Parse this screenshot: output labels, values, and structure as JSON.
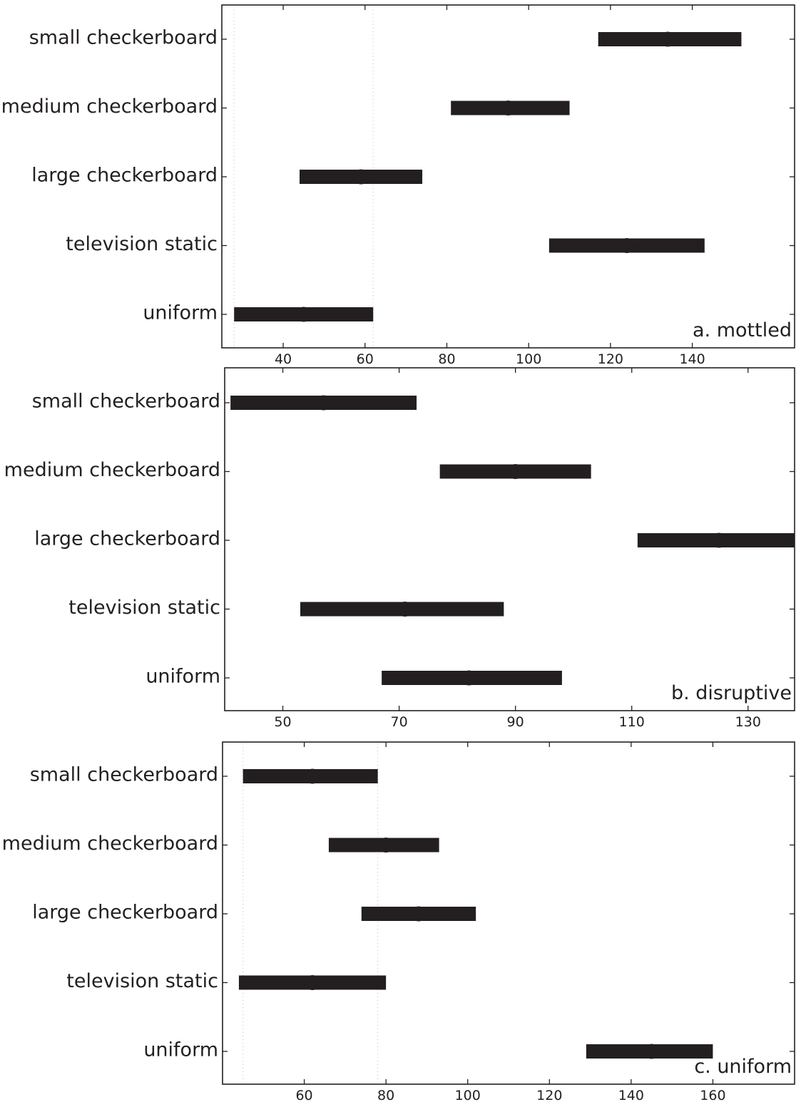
{
  "chart_data": [
    {
      "type": "dot-interval",
      "label": "a. mottled",
      "categories": [
        "small checkerboard",
        "medium checkerboard",
        "large checkerboard",
        "television static",
        "uniform"
      ],
      "means": [
        134,
        95,
        59,
        124,
        45
      ],
      "lower": [
        117,
        81,
        44,
        105,
        28
      ],
      "upper": [
        152,
        110,
        74,
        143,
        62
      ],
      "xticks": [
        40,
        60,
        80,
        100,
        120,
        140
      ],
      "xlim": [
        25,
        165
      ],
      "guides": [
        28,
        62
      ]
    },
    {
      "type": "dot-interval",
      "label": "b. disruptive",
      "categories": [
        "small checkerboard",
        "medium checkerboard",
        "large checkerboard",
        "television static",
        "uniform"
      ],
      "means": [
        57,
        90,
        125,
        71,
        82
      ],
      "lower": [
        41,
        77,
        111,
        53,
        67
      ],
      "upper": [
        73,
        103,
        138,
        88,
        98
      ],
      "xticks": [
        50,
        70,
        90,
        110,
        130
      ],
      "xlim": [
        40,
        138
      ],
      "guides": []
    },
    {
      "type": "dot-interval",
      "label": "c. uniform",
      "categories": [
        "small checkerboard",
        "medium checkerboard",
        "large checkerboard",
        "television static",
        "uniform"
      ],
      "means": [
        62,
        80,
        88,
        62,
        145
      ],
      "lower": [
        45,
        66,
        74,
        44,
        129
      ],
      "upper": [
        78,
        93,
        102,
        80,
        160
      ],
      "xticks": [
        60,
        80,
        100,
        120,
        140,
        160
      ],
      "xlim": [
        40,
        180
      ],
      "guides": [
        45,
        78
      ]
    }
  ]
}
